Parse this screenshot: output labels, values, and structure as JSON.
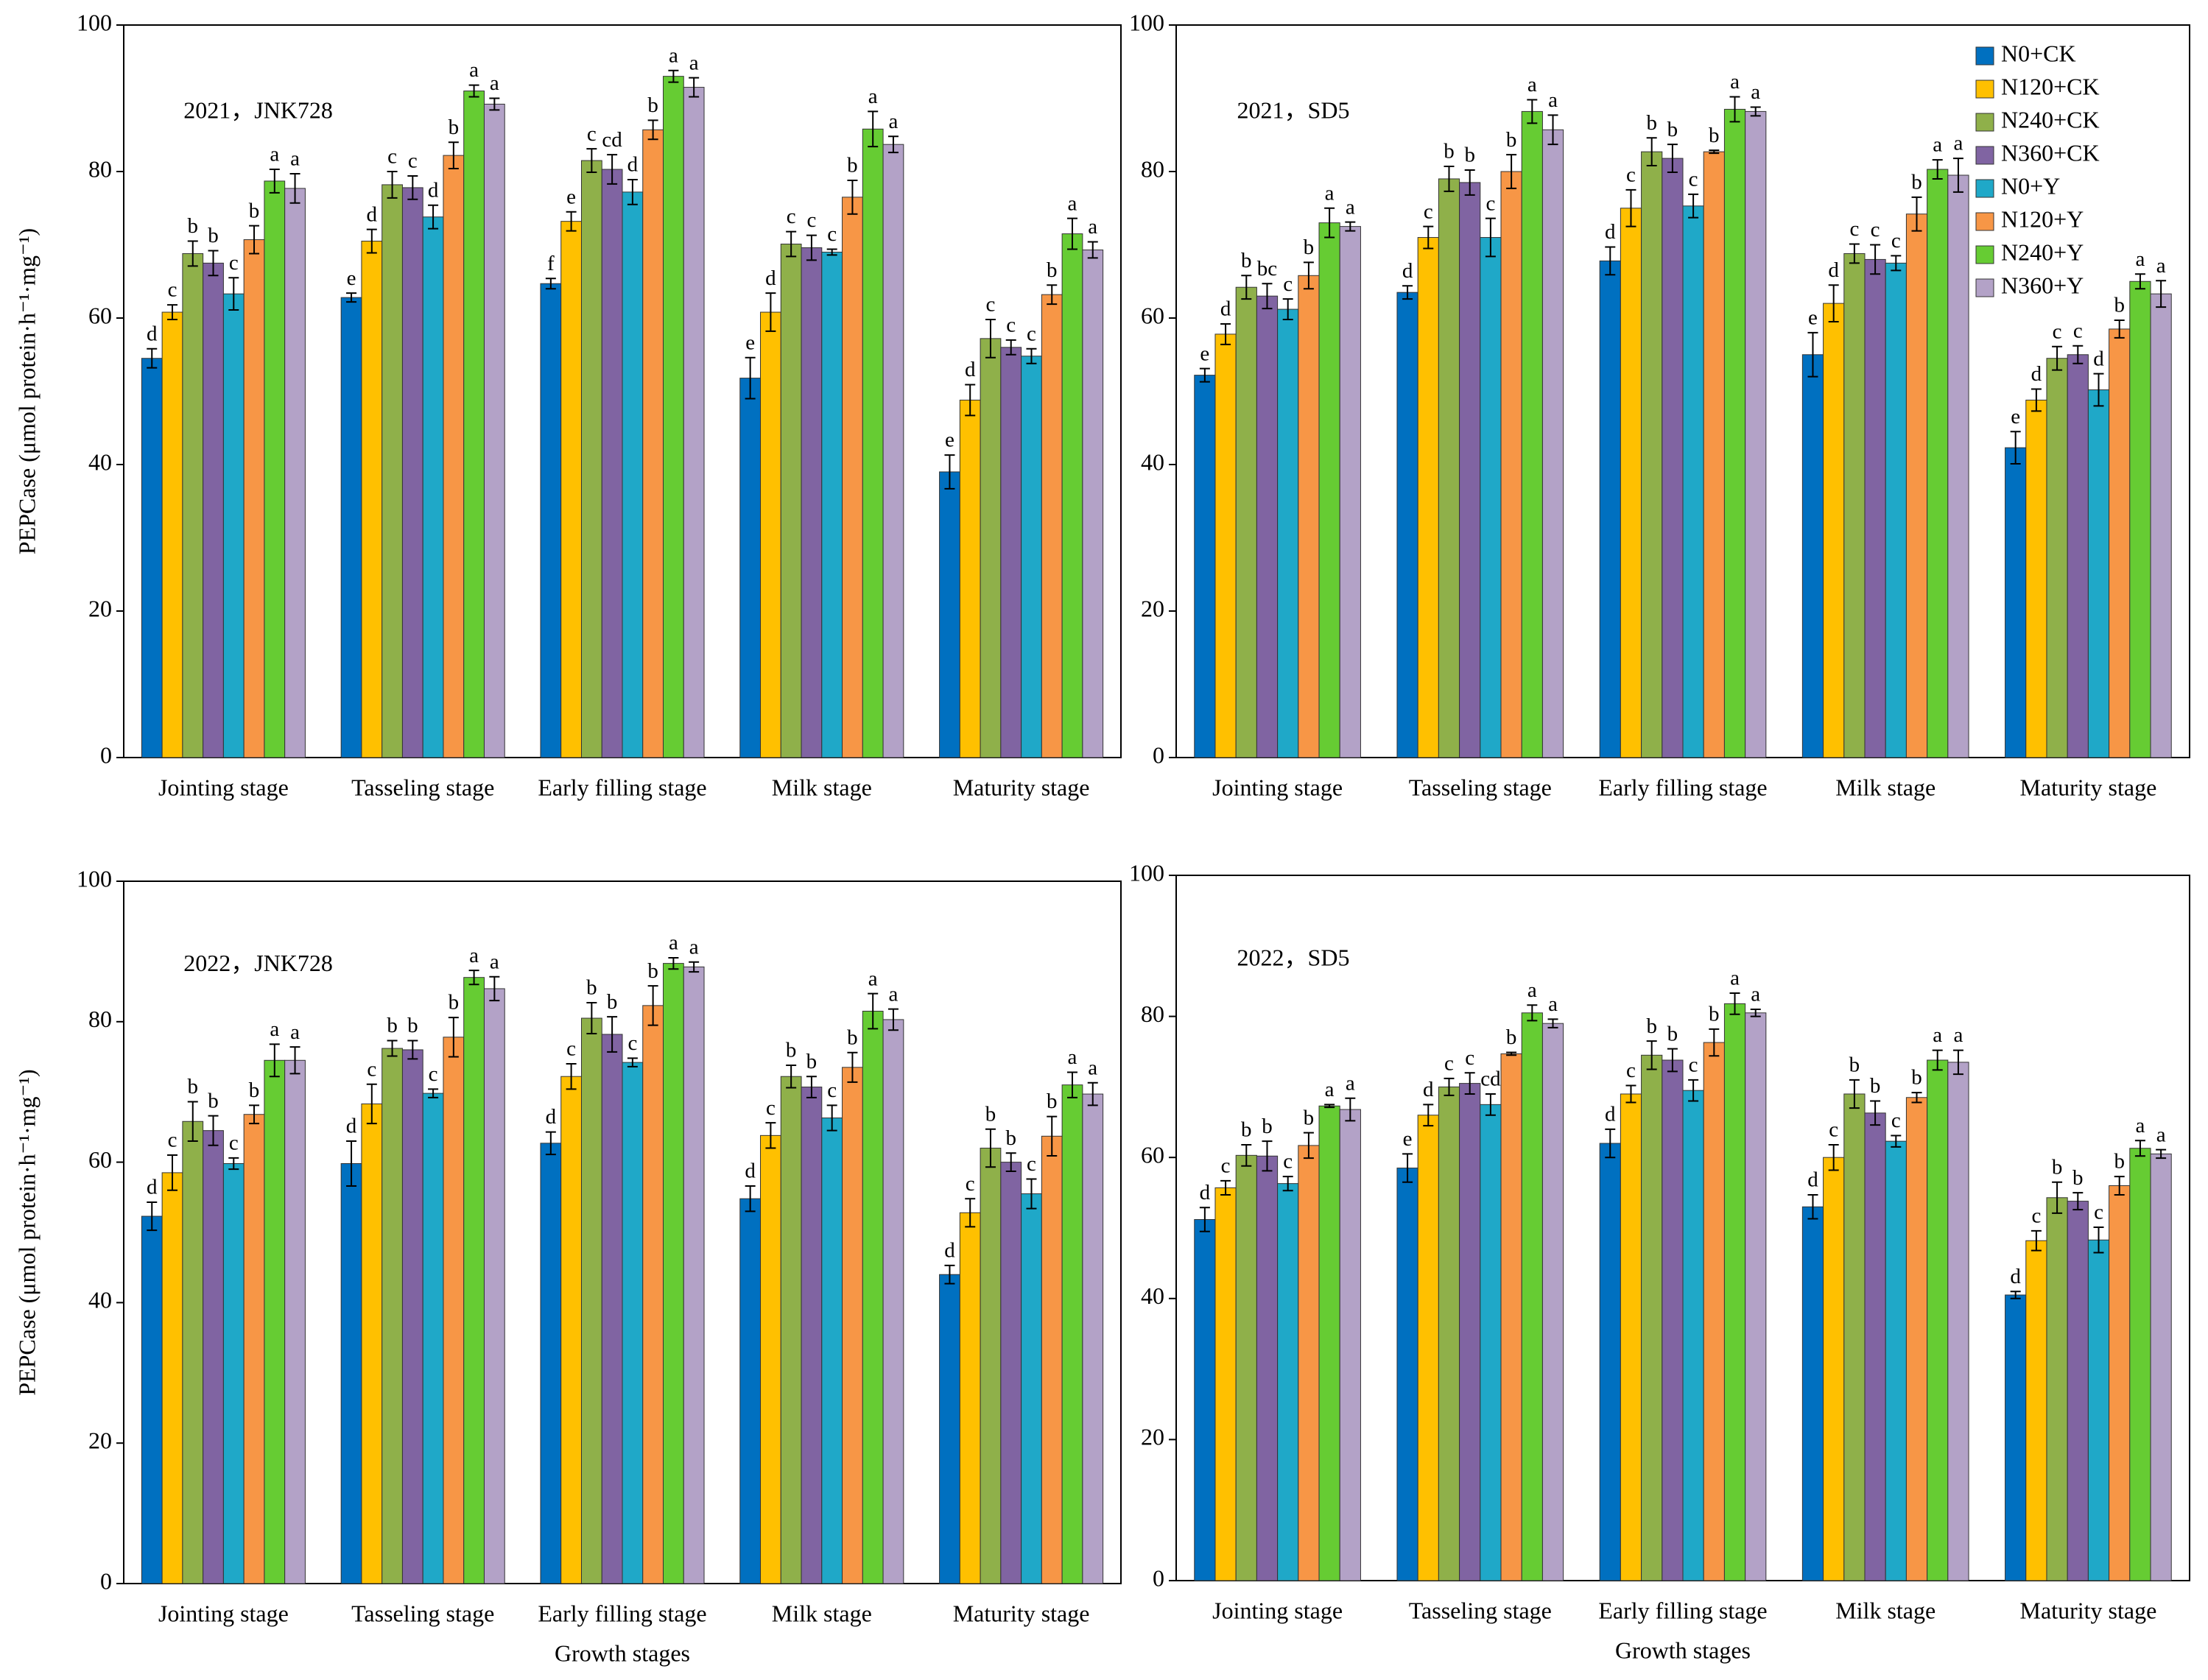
{
  "chart_data": [
    {
      "type": "bar",
      "title": "2021，JNK728",
      "y_label": "PEPCase (μmol protein·h⁻¹·mg⁻¹)",
      "categories": [
        "Jointing stage",
        "Tasseling stage",
        "Early filling stage",
        "Milk stage",
        "Maturity stage"
      ],
      "ylim": [
        0,
        100
      ],
      "yticks": [
        0,
        20,
        40,
        60,
        80,
        100
      ],
      "series": [
        {
          "color": "#0070c0",
          "values": [
            54.5,
            62.8,
            64.7,
            51.8,
            39.0
          ],
          "errors": [
            1.3,
            0.6,
            0.7,
            2.8,
            2.3
          ],
          "letters": [
            "d",
            "e",
            "f",
            "e",
            "e"
          ]
        },
        {
          "color": "#ffc000",
          "values": [
            60.8,
            70.5,
            73.2,
            60.8,
            48.8
          ],
          "errors": [
            1.0,
            1.6,
            1.3,
            2.6,
            2.1
          ],
          "letters": [
            "c",
            "d",
            "e",
            "d",
            "d"
          ]
        },
        {
          "color": "#8fb04a",
          "values": [
            68.8,
            78.2,
            81.5,
            70.1,
            57.2
          ],
          "errors": [
            1.7,
            1.8,
            1.6,
            1.7,
            2.6
          ],
          "letters": [
            "b",
            "c",
            "c",
            "c",
            "c"
          ]
        },
        {
          "color": "#8064a2",
          "values": [
            67.5,
            77.8,
            80.3,
            69.6,
            56.0
          ],
          "errors": [
            1.7,
            1.6,
            2.0,
            1.7,
            1.0
          ],
          "letters": [
            "b",
            "c",
            "cd",
            "c",
            "c"
          ]
        },
        {
          "color": "#1fa8c8",
          "values": [
            63.3,
            73.8,
            77.2,
            69.0,
            54.8
          ],
          "errors": [
            2.2,
            1.6,
            1.7,
            0.4,
            1.0
          ],
          "letters": [
            "c",
            "d",
            "d",
            "c",
            "c"
          ]
        },
        {
          "color": "#f79646",
          "values": [
            70.7,
            82.2,
            85.7,
            76.5,
            63.2
          ],
          "errors": [
            1.9,
            1.8,
            1.3,
            2.3,
            1.3
          ],
          "letters": [
            "b",
            "b",
            "b",
            "b",
            "b"
          ]
        },
        {
          "color": "#66cc33",
          "values": [
            78.7,
            91.0,
            93.0,
            85.8,
            71.5
          ],
          "errors": [
            1.6,
            0.8,
            0.8,
            2.4,
            2.1
          ],
          "letters": [
            "a",
            "a",
            "a",
            "a",
            "a"
          ]
        },
        {
          "color": "#b3a2c7",
          "values": [
            77.7,
            89.2,
            91.5,
            83.7,
            69.3
          ],
          "errors": [
            2.0,
            0.8,
            1.3,
            1.1,
            1.1
          ],
          "letters": [
            "a",
            "a",
            "a",
            "a",
            "a"
          ]
        }
      ]
    },
    {
      "type": "bar",
      "title": "2021，SD5",
      "legend": "upper right",
      "categories": [
        "Jointing stage",
        "Tasseling stage",
        "Early filling stage",
        "Milk stage",
        "Maturity stage"
      ],
      "ylim": [
        0,
        100
      ],
      "yticks": [
        0,
        20,
        40,
        60,
        80,
        100
      ],
      "series": [
        {
          "name": "N0+CK",
          "color": "#0070c0",
          "values": [
            52.2,
            63.5,
            67.8,
            55.0,
            42.3
          ],
          "errors": [
            0.9,
            0.9,
            1.9,
            3.0,
            2.2
          ],
          "letters": [
            "e",
            "d",
            "d",
            "e",
            "e"
          ]
        },
        {
          "name": "N120+CK",
          "color": "#ffc000",
          "values": [
            57.8,
            71.0,
            75.0,
            62.0,
            48.8
          ],
          "errors": [
            1.4,
            1.5,
            2.5,
            2.5,
            1.5
          ],
          "letters": [
            "d",
            "c",
            "c",
            "d",
            "d"
          ]
        },
        {
          "name": "N240+CK",
          "color": "#8fb04a",
          "values": [
            64.2,
            79.0,
            82.7,
            68.8,
            54.5
          ],
          "errors": [
            1.6,
            1.7,
            1.9,
            1.3,
            1.6
          ],
          "letters": [
            "b",
            "b",
            "b",
            "c",
            "c"
          ]
        },
        {
          "name": "N360+CK",
          "color": "#8064a2",
          "values": [
            63.0,
            78.5,
            81.8,
            68.0,
            55.0
          ],
          "errors": [
            1.7,
            1.7,
            1.9,
            2.0,
            1.2
          ],
          "letters": [
            "bc",
            "b",
            "b",
            "c",
            "c"
          ]
        },
        {
          "name": "N0+Y",
          "color": "#1fa8c8",
          "values": [
            61.2,
            71.0,
            75.3,
            67.5,
            50.2
          ],
          "errors": [
            1.4,
            2.6,
            1.6,
            1.0,
            2.2
          ],
          "letters": [
            "c",
            "c",
            "c",
            "c",
            "d"
          ]
        },
        {
          "name": "N120+Y",
          "color": "#f79646",
          "values": [
            65.8,
            80.0,
            82.7,
            74.2,
            58.5
          ],
          "errors": [
            1.8,
            2.3,
            0.2,
            2.3,
            1.2
          ],
          "letters": [
            "b",
            "b",
            "b",
            "b",
            "b"
          ]
        },
        {
          "name": "N240+Y",
          "color": "#66cc33",
          "values": [
            73.0,
            88.2,
            88.5,
            80.3,
            65.0
          ],
          "errors": [
            2.0,
            1.6,
            1.7,
            1.3,
            1.0
          ],
          "letters": [
            "a",
            "a",
            "a",
            "a",
            "a"
          ]
        },
        {
          "name": "N360+Y",
          "color": "#b3a2c7",
          "values": [
            72.5,
            85.7,
            88.2,
            79.5,
            63.3
          ],
          "errors": [
            0.6,
            2.0,
            0.6,
            2.3,
            1.8
          ],
          "letters": [
            "a",
            "a",
            "a",
            "a",
            "a"
          ]
        }
      ]
    },
    {
      "type": "bar",
      "title": "2022，JNK728",
      "y_label": "PEPCase (μmol protein·h⁻¹·mg⁻¹)",
      "x_label": "Growth stages",
      "categories": [
        "Jointing stage",
        "Tasseling stage",
        "Early filling stage",
        "Milk stage",
        "Maturity stage"
      ],
      "ylim": [
        0,
        100
      ],
      "yticks": [
        0,
        20,
        40,
        60,
        80,
        100
      ],
      "series": [
        {
          "color": "#0070c0",
          "values": [
            52.3,
            59.8,
            62.7,
            54.8,
            44.0
          ],
          "errors": [
            2.0,
            3.2,
            1.6,
            1.8,
            1.3
          ],
          "letters": [
            "d",
            "d",
            "d",
            "d",
            "d"
          ]
        },
        {
          "color": "#ffc000",
          "values": [
            58.5,
            68.3,
            72.2,
            63.8,
            52.8
          ],
          "errors": [
            2.5,
            2.8,
            1.8,
            1.8,
            2.0
          ],
          "letters": [
            "c",
            "c",
            "c",
            "c",
            "c"
          ]
        },
        {
          "color": "#8fb04a",
          "values": [
            65.8,
            76.2,
            80.5,
            72.2,
            62.0
          ],
          "errors": [
            2.8,
            1.1,
            2.2,
            1.6,
            2.7
          ],
          "letters": [
            "b",
            "b",
            "b",
            "b",
            "b"
          ]
        },
        {
          "color": "#8064a2",
          "values": [
            64.5,
            76.0,
            78.2,
            70.7,
            60.0
          ],
          "errors": [
            2.1,
            1.3,
            2.5,
            1.5,
            1.3
          ],
          "letters": [
            "b",
            "b",
            "b",
            "b",
            "b"
          ]
        },
        {
          "color": "#1fa8c8",
          "values": [
            59.8,
            69.8,
            74.2,
            66.3,
            55.5
          ],
          "errors": [
            0.8,
            0.6,
            0.6,
            1.8,
            2.1
          ],
          "letters": [
            "c",
            "c",
            "c",
            "c",
            "c"
          ]
        },
        {
          "color": "#f79646",
          "values": [
            66.8,
            77.8,
            82.3,
            73.5,
            63.7
          ],
          "errors": [
            1.3,
            2.8,
            2.8,
            2.1,
            2.8
          ],
          "letters": [
            "b",
            "b",
            "b",
            "b",
            "b"
          ]
        },
        {
          "color": "#66cc33",
          "values": [
            74.5,
            86.3,
            88.3,
            81.5,
            71.0
          ],
          "errors": [
            2.3,
            1.0,
            0.8,
            2.5,
            1.8
          ],
          "letters": [
            "a",
            "a",
            "a",
            "a",
            "a"
          ]
        },
        {
          "color": "#b3a2c7",
          "values": [
            74.5,
            84.7,
            87.8,
            80.3,
            69.7
          ],
          "errors": [
            1.9,
            1.7,
            0.7,
            1.5,
            1.6
          ],
          "letters": [
            "a",
            "a",
            "a",
            "a",
            "a"
          ]
        }
      ]
    },
    {
      "type": "bar",
      "title": "2022，SD5",
      "x_label": "Growth stages",
      "categories": [
        "Jointing stage",
        "Tasseling stage",
        "Early filling stage",
        "Milk stage",
        "Maturity stage"
      ],
      "ylim": [
        0,
        100
      ],
      "yticks": [
        0,
        20,
        40,
        60,
        80,
        100
      ],
      "series": [
        {
          "color": "#0070c0",
          "values": [
            51.2,
            58.5,
            62.0,
            53.0,
            40.5
          ],
          "errors": [
            1.7,
            2.0,
            2.0,
            1.7,
            0.5
          ],
          "letters": [
            "d",
            "e",
            "d",
            "d",
            "d"
          ]
        },
        {
          "color": "#ffc000",
          "values": [
            55.7,
            66.0,
            69.0,
            60.0,
            48.2
          ],
          "errors": [
            1.0,
            1.5,
            1.2,
            1.8,
            1.4
          ],
          "letters": [
            "c",
            "d",
            "c",
            "c",
            "c"
          ]
        },
        {
          "color": "#8fb04a",
          "values": [
            60.3,
            70.0,
            74.5,
            69.0,
            54.3
          ],
          "errors": [
            1.5,
            1.2,
            2.0,
            2.0,
            2.2
          ],
          "letters": [
            "b",
            "c",
            "b",
            "b",
            "b"
          ]
        },
        {
          "color": "#8064a2",
          "values": [
            60.2,
            70.5,
            73.8,
            66.3,
            53.8
          ],
          "errors": [
            2.1,
            1.5,
            1.6,
            1.7,
            1.2
          ],
          "letters": [
            "b",
            "c",
            "b",
            "b",
            "b"
          ]
        },
        {
          "color": "#1fa8c8",
          "values": [
            56.3,
            67.5,
            69.5,
            62.3,
            48.3
          ],
          "errors": [
            1.0,
            1.5,
            1.5,
            0.8,
            1.8
          ],
          "letters": [
            "c",
            "cd",
            "c",
            "c",
            "c"
          ]
        },
        {
          "color": "#f79646",
          "values": [
            61.7,
            74.7,
            76.3,
            68.5,
            56.0
          ],
          "errors": [
            1.8,
            0.2,
            1.9,
            0.7,
            1.3
          ],
          "letters": [
            "b",
            "b",
            "b",
            "b",
            "b"
          ]
        },
        {
          "color": "#66cc33",
          "values": [
            67.3,
            80.5,
            81.8,
            73.8,
            61.3
          ],
          "errors": [
            0.2,
            1.1,
            1.5,
            1.4,
            1.1
          ],
          "letters": [
            "a",
            "a",
            "a",
            "a",
            "a"
          ]
        },
        {
          "color": "#b3a2c7",
          "values": [
            66.8,
            79.0,
            80.5,
            73.5,
            60.5
          ],
          "errors": [
            1.6,
            0.6,
            0.5,
            1.7,
            0.6
          ],
          "letters": [
            "a",
            "a",
            "a",
            "a",
            "a"
          ]
        }
      ]
    }
  ]
}
